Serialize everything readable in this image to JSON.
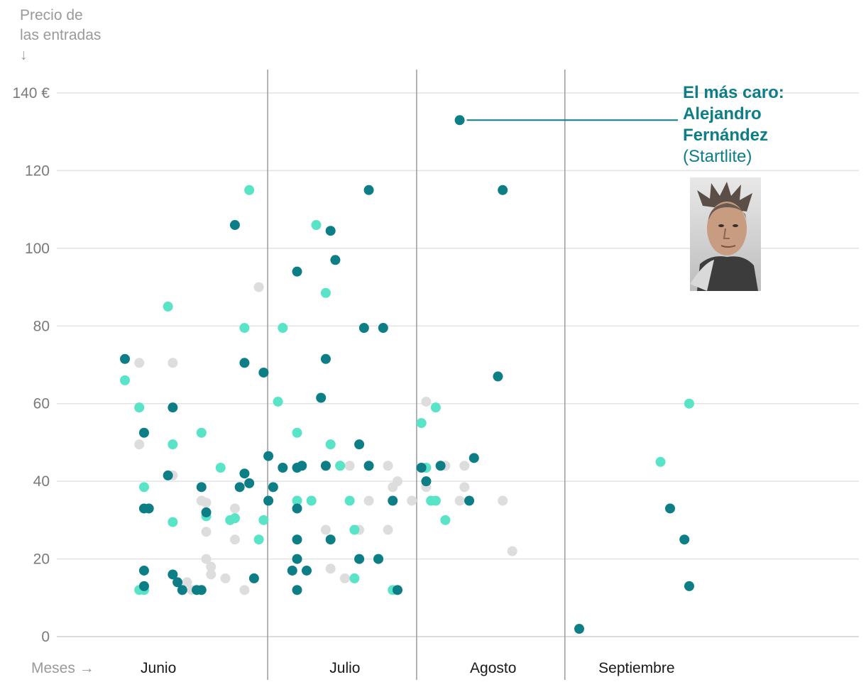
{
  "y_axis_title": [
    "Precio de",
    "las entradas",
    "↓"
  ],
  "x_axis_title": "Meses →",
  "annotation": {
    "line1": "El más caro:",
    "line2": "Alejandro",
    "line3": "Fernández",
    "venue": "(Startlite)",
    "photo_alt": "Alejandro Fernández"
  },
  "colors": {
    "dark": "#0d7e86",
    "light": "#59e3c7",
    "grey": "#dddddd",
    "grid": "#e3e3e3",
    "divider": "#9b9b9b",
    "axis_text": "#7a7a7a"
  },
  "chart_data": {
    "type": "scatter",
    "title": "",
    "xlabel": "Meses",
    "ylabel": "Precio de las entradas",
    "ylim": [
      0,
      140
    ],
    "yticks": [
      0,
      20,
      40,
      60,
      80,
      100,
      120,
      140
    ],
    "ytick_labels": [
      "0",
      "20",
      "40",
      "60",
      "80",
      "100",
      "120",
      "140 €"
    ],
    "xlim": [
      1,
      123
    ],
    "months": [
      {
        "label": "Junio",
        "start": 1,
        "end": 31,
        "label_at": 8
      },
      {
        "label": "Julio",
        "start": 31,
        "end": 62,
        "label_at": 47
      },
      {
        "label": "Agosto",
        "start": 62,
        "end": 93,
        "label_at": 78
      },
      {
        "label": "Septiembre",
        "start": 93,
        "end": 123,
        "label_at": 108
      }
    ],
    "series": [
      {
        "name": "grey",
        "points": [
          [
            4,
            70.5
          ],
          [
            4,
            49.5
          ],
          [
            11,
            70.5
          ],
          [
            11,
            41.5
          ],
          [
            14,
            14
          ],
          [
            15,
            12
          ],
          [
            17,
            35
          ],
          [
            18,
            34.5
          ],
          [
            18,
            27
          ],
          [
            18,
            20
          ],
          [
            19,
            18
          ],
          [
            19,
            16
          ],
          [
            22,
            15
          ],
          [
            24,
            33
          ],
          [
            24,
            25
          ],
          [
            26,
            12
          ],
          [
            29,
            90
          ],
          [
            37,
            35
          ],
          [
            39,
            17
          ],
          [
            43,
            44
          ],
          [
            43,
            27.5
          ],
          [
            44,
            17.5
          ],
          [
            46,
            44
          ],
          [
            47,
            15
          ],
          [
            48,
            44
          ],
          [
            50,
            27.5
          ],
          [
            52,
            35
          ],
          [
            56,
            44
          ],
          [
            56,
            27.5
          ],
          [
            57,
            38.5
          ],
          [
            58,
            40
          ],
          [
            61,
            35
          ],
          [
            64,
            60.5
          ],
          [
            64,
            38.5
          ],
          [
            68,
            44
          ],
          [
            71,
            35
          ],
          [
            72,
            38.5
          ],
          [
            72,
            44
          ],
          [
            80,
            35
          ],
          [
            82,
            22
          ]
        ]
      },
      {
        "name": "light",
        "points": [
          [
            1,
            66
          ],
          [
            4,
            59
          ],
          [
            4,
            12
          ],
          [
            5,
            38.5
          ],
          [
            5,
            12
          ],
          [
            10,
            85
          ],
          [
            11,
            49.5
          ],
          [
            11,
            29.5
          ],
          [
            17,
            52.5
          ],
          [
            18,
            31
          ],
          [
            21,
            43.5
          ],
          [
            23,
            30
          ],
          [
            24,
            30.5
          ],
          [
            26,
            79.5
          ],
          [
            27,
            115
          ],
          [
            29,
            25
          ],
          [
            30,
            30
          ],
          [
            33,
            60.5
          ],
          [
            34,
            79.5
          ],
          [
            37,
            52.5
          ],
          [
            37,
            35
          ],
          [
            40,
            35
          ],
          [
            41,
            106
          ],
          [
            43,
            88.5
          ],
          [
            44,
            49.5
          ],
          [
            46,
            44
          ],
          [
            48,
            35
          ],
          [
            49,
            15
          ],
          [
            49,
            27.5
          ],
          [
            50,
            20
          ],
          [
            54,
            20
          ],
          [
            57,
            12
          ],
          [
            63,
            55
          ],
          [
            64,
            43.5
          ],
          [
            65,
            35
          ],
          [
            66,
            35
          ],
          [
            66,
            59
          ],
          [
            68,
            30
          ],
          [
            113,
            45
          ],
          [
            119,
            60
          ]
        ]
      },
      {
        "name": "dark",
        "points": [
          [
            1,
            71.5
          ],
          [
            5,
            52.5
          ],
          [
            5,
            33
          ],
          [
            5,
            17
          ],
          [
            5,
            13
          ],
          [
            6,
            33
          ],
          [
            10,
            41.5
          ],
          [
            11,
            59
          ],
          [
            11,
            16
          ],
          [
            12,
            14
          ],
          [
            13,
            12
          ],
          [
            16,
            12
          ],
          [
            17,
            12
          ],
          [
            17,
            38.5
          ],
          [
            18,
            32
          ],
          [
            24,
            106
          ],
          [
            25,
            38.5
          ],
          [
            26,
            70.5
          ],
          [
            26,
            42
          ],
          [
            27,
            39.5
          ],
          [
            28,
            15
          ],
          [
            30,
            68
          ],
          [
            31,
            46.5
          ],
          [
            31,
            35
          ],
          [
            32,
            38.5
          ],
          [
            34,
            43.5
          ],
          [
            36,
            17
          ],
          [
            37,
            94
          ],
          [
            37,
            43.5
          ],
          [
            37,
            33
          ],
          [
            37,
            25
          ],
          [
            37,
            20
          ],
          [
            37,
            12
          ],
          [
            38,
            44
          ],
          [
            39,
            17
          ],
          [
            42,
            61.5
          ],
          [
            43,
            71.5
          ],
          [
            43,
            44
          ],
          [
            44,
            104.5
          ],
          [
            44,
            25
          ],
          [
            45,
            97
          ],
          [
            50,
            49.5
          ],
          [
            50,
            20
          ],
          [
            51,
            79.5
          ],
          [
            52,
            115
          ],
          [
            52,
            44
          ],
          [
            54,
            20
          ],
          [
            55,
            79.5
          ],
          [
            57,
            35
          ],
          [
            58,
            12
          ],
          [
            64,
            40
          ],
          [
            63,
            43.5
          ],
          [
            67,
            44
          ],
          [
            71,
            133
          ],
          [
            73,
            35
          ],
          [
            74,
            46
          ],
          [
            79,
            67
          ],
          [
            80,
            115
          ],
          [
            96,
            2
          ],
          [
            115,
            33
          ],
          [
            118,
            25
          ],
          [
            119,
            13
          ]
        ]
      }
    ],
    "highlight": {
      "x": 71,
      "y": 133,
      "label": "El más caro: Alejandro Fernández (Startlite)"
    }
  }
}
